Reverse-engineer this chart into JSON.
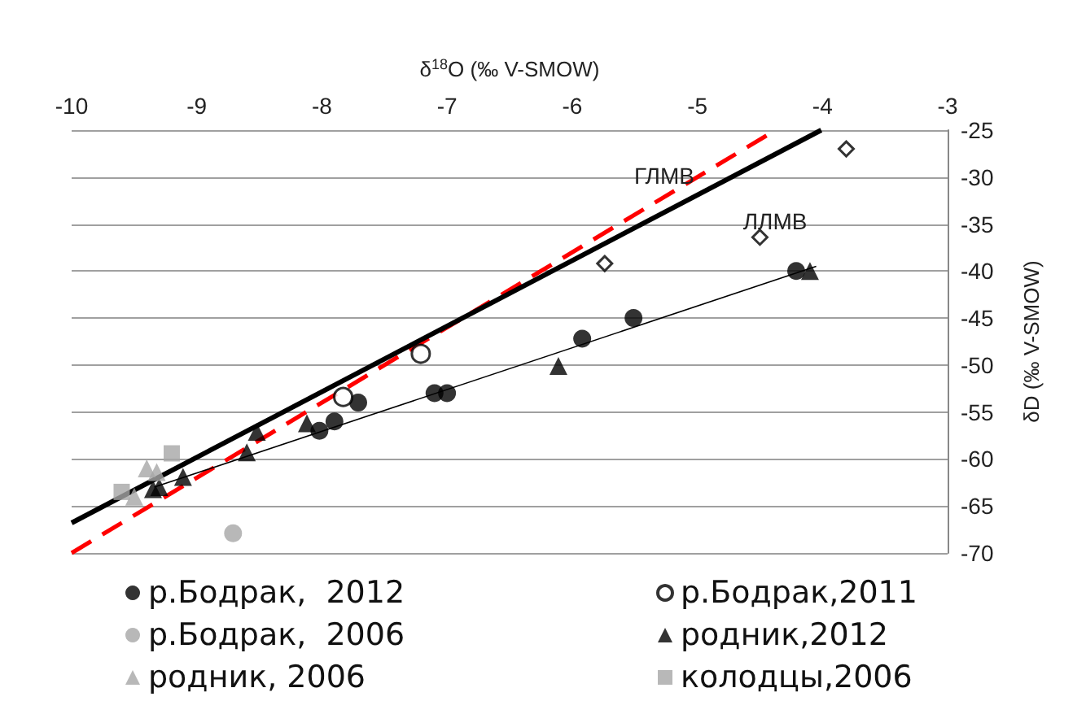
{
  "chart_data": {
    "type": "scatter",
    "xlabel": "δ$^{18}$O (‰ V-SMOW)",
    "ylabel": "δD (‰ V-SMOW)",
    "xlim": [
      -10,
      -3
    ],
    "xticks": [
      -10,
      -9,
      -8,
      -7,
      -6,
      -5,
      -4,
      -3
    ],
    "ylim": [
      -70,
      -25
    ],
    "yticks": [
      -70,
      -65,
      -60,
      -55,
      -50,
      -45,
      -40,
      -35,
      -30,
      -25
    ],
    "grid": "y",
    "legend": "bottom",
    "annotations": [
      "ГЛМВ",
      "ЛЛМВ"
    ],
    "series": [
      {
        "name": "р.Бодрак,  2012",
        "color": "#000000",
        "marker": "circle",
        "x": [
          -8.02,
          -7.9,
          -7.71,
          -7.1,
          -7.0,
          -5.92,
          -5.51,
          -4.21
        ],
        "values": [
          -57,
          -56,
          -54,
          -53,
          -53,
          -47.2,
          -45,
          -40
        ]
      },
      {
        "name": "р.Бодрак,2011",
        "color": "#ffffff",
        "marker": "circle",
        "x": [
          -7.83,
          -7.21
        ],
        "values": [
          -53.4,
          -48.8
        ]
      },
      {
        "name": "р.Бодрак,  2006",
        "color": "#a6a6a6",
        "marker": "circle",
        "x": [
          -8.71
        ],
        "values": [
          -67.9
        ]
      },
      {
        "name": "родник,2012",
        "color": "#000000",
        "marker": "triangle",
        "x": [
          -8.52,
          -8.6,
          -8.12,
          -9.11,
          -9.35,
          -9.3,
          -6.11,
          -4.1
        ],
        "values": [
          -57.1,
          -59.3,
          -56.2,
          -61.9,
          -63.2,
          -63,
          -50.1,
          -40
        ]
      },
      {
        "name": "родник, 2006",
        "color": "#a6a6a6",
        "marker": "triangle",
        "x": [
          -9.4,
          -9.32,
          -9.5
        ],
        "values": [
          -61,
          -61.4,
          -64
        ]
      },
      {
        "name": "колодцы,2006",
        "color": "#a6a6a6",
        "marker": "square",
        "x": [
          -9.2,
          -9.6
        ],
        "values": [
          -59.4,
          -63.5
        ]
      },
      {
        "color": "#ffffff",
        "marker": "diamond",
        "x": [
          -3.81,
          -5.74,
          -4.5
        ],
        "values": [
          -27,
          -39.2,
          -36.4
        ]
      },
      {
        "type": "line",
        "color": "#ff0000",
        "line_style": "dashed",
        "marker": "none",
        "x": [
          -10,
          -4.375
        ],
        "values": [
          -70,
          -25
        ]
      },
      {
        "type": "line",
        "color": "#000000",
        "line_style": "solid",
        "marker": "none",
        "x": [
          -10,
          -4.01
        ],
        "values": [
          -66.8,
          -25
        ]
      },
      {
        "type": "line",
        "color": "#000000",
        "line_style": "solid",
        "marker": "none",
        "x": [
          -9.34,
          -4.05
        ],
        "values": [
          -63,
          -39.5
        ]
      }
    ]
  }
}
